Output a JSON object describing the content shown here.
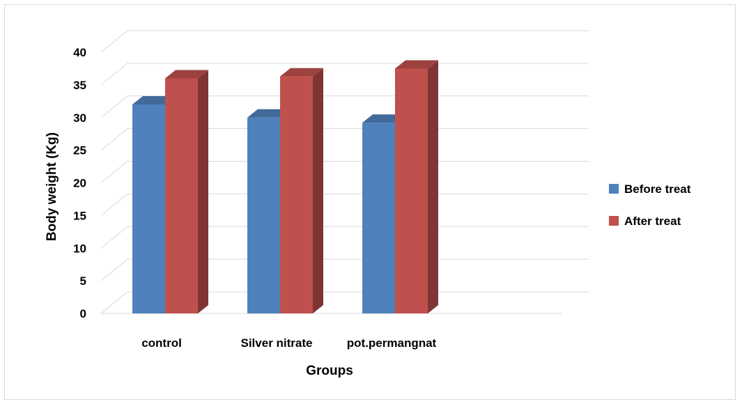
{
  "chart_data": {
    "type": "bar",
    "title": "",
    "xlabel": "Groups",
    "ylabel": "Body weight (Kg)",
    "categories": [
      "control",
      "Silver nitrate",
      "pot.permangnat"
    ],
    "series": [
      {
        "name": "Before treat",
        "values": [
          32,
          30,
          29.2
        ],
        "color": "#4f81bd"
      },
      {
        "name": "After treat",
        "values": [
          36,
          36.3,
          37.5
        ],
        "color": "#c0504d"
      }
    ],
    "ylim": [
      0,
      40
    ],
    "yticks": [
      "0",
      "5",
      "10",
      "15",
      "20",
      "25",
      "30",
      "35",
      "40"
    ],
    "grid": true,
    "legend": "right",
    "style": "3d-clustered-bar"
  }
}
